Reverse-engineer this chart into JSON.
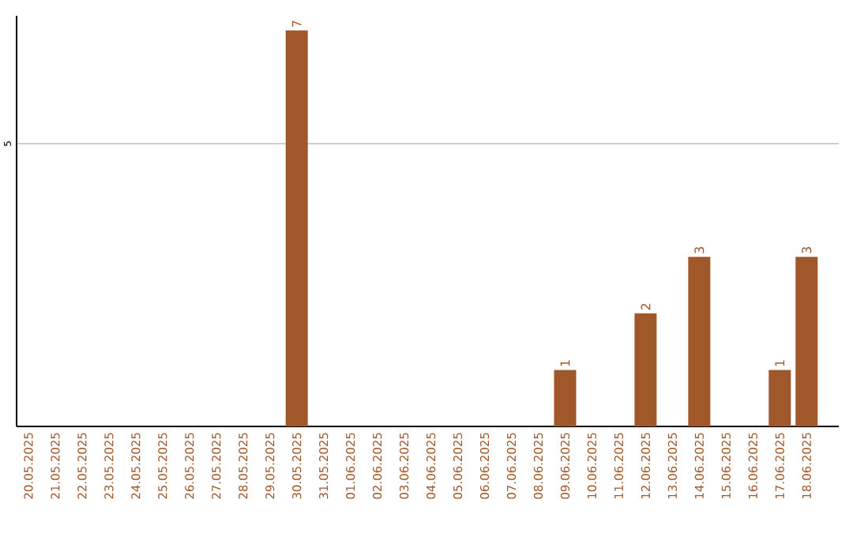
{
  "chart_data": {
    "type": "bar",
    "categories": [
      "20.05.2025",
      "21.05.2025",
      "22.05.2025",
      "23.05.2025",
      "24.05.2025",
      "25.05.2025",
      "26.05.2025",
      "27.05.2025",
      "28.05.2025",
      "29.05.2025",
      "30.05.2025",
      "31.05.2025",
      "01.06.2025",
      "02.06.2025",
      "03.06.2025",
      "04.06.2025",
      "05.06.2025",
      "06.06.2025",
      "07.06.2025",
      "08.06.2025",
      "09.06.2025",
      "10.06.2025",
      "11.06.2025",
      "12.06.2025",
      "13.06.2025",
      "14.06.2025",
      "15.06.2025",
      "16.06.2025",
      "17.06.2025",
      "18.06.2025"
    ],
    "values": [
      0,
      0,
      0,
      0,
      0,
      0,
      0,
      0,
      0,
      0,
      7,
      0,
      0,
      0,
      0,
      0,
      0,
      0,
      0,
      0,
      1,
      0,
      0,
      2,
      0,
      3,
      0,
      0,
      1,
      3
    ],
    "value_labels": [
      null,
      null,
      null,
      null,
      null,
      null,
      null,
      null,
      null,
      null,
      "7",
      null,
      null,
      null,
      null,
      null,
      null,
      null,
      null,
      null,
      "1",
      null,
      null,
      "2",
      null,
      "3",
      null,
      null,
      "1",
      "3"
    ],
    "color": "#a0572a",
    "ylim": [
      0,
      7.26
    ],
    "yticks": [
      5
    ],
    "grid": "y"
  }
}
